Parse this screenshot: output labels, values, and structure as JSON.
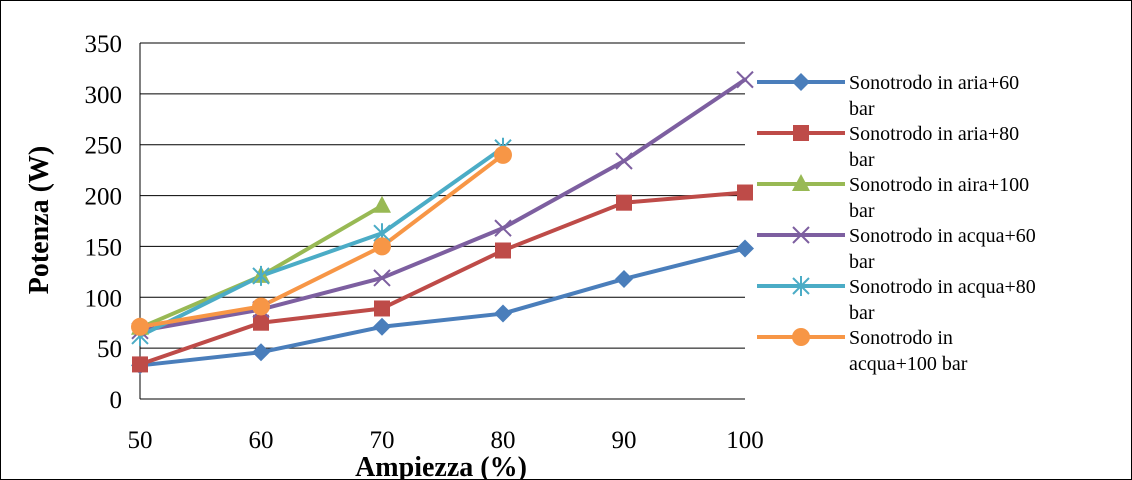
{
  "chart_data": {
    "type": "line",
    "xlabel": "Ampiezza (%)",
    "ylabel": "Potenza (W)",
    "x": [
      50,
      60,
      70,
      80,
      90,
      100
    ],
    "x_ticks": [
      "50",
      "60",
      "70",
      "80",
      "90",
      "100"
    ],
    "y_ticks": [
      "0",
      "50",
      "100",
      "150",
      "200",
      "250",
      "300",
      "350"
    ],
    "xlim": [
      50,
      100
    ],
    "ylim": [
      0,
      350
    ],
    "grid": "horizontal",
    "legend_position": "right",
    "series": [
      {
        "name_lines": [
          "Sonotrodo in aria+60",
          "bar"
        ],
        "color": "#4a7ebb",
        "marker": "diamond",
        "points": [
          [
            50,
            33
          ],
          [
            60,
            46
          ],
          [
            70,
            71
          ],
          [
            80,
            84
          ],
          [
            90,
            118
          ],
          [
            100,
            148
          ]
        ]
      },
      {
        "name_lines": [
          "Sonotrodo in aria+80",
          "bar"
        ],
        "color": "#be4b48",
        "marker": "square",
        "points": [
          [
            50,
            34
          ],
          [
            60,
            75
          ],
          [
            70,
            89
          ],
          [
            80,
            146
          ],
          [
            90,
            193
          ],
          [
            100,
            203
          ]
        ]
      },
      {
        "name_lines": [
          "Sonotrodo in aira+100",
          "bar"
        ],
        "color": "#98b954",
        "marker": "triangle",
        "points": [
          [
            50,
            70
          ],
          [
            60,
            121
          ],
          [
            70,
            190
          ]
        ]
      },
      {
        "name_lines": [
          "Sonotrodo in acqua+60",
          "bar"
        ],
        "color": "#7d5fa0",
        "marker": "x",
        "points": [
          [
            50,
            67
          ],
          [
            60,
            88
          ],
          [
            70,
            119
          ],
          [
            80,
            168
          ],
          [
            90,
            234
          ],
          [
            100,
            314
          ]
        ]
      },
      {
        "name_lines": [
          "Sonotrodo in acqua+80",
          "bar"
        ],
        "color": "#4bacc6",
        "marker": "star",
        "points": [
          [
            50,
            62
          ],
          [
            60,
            121
          ],
          [
            70,
            163
          ],
          [
            80,
            247
          ]
        ]
      },
      {
        "name_lines": [
          "Sonotrodo in",
          "acqua+100 bar"
        ],
        "color": "#f79646",
        "marker": "circle",
        "points": [
          [
            50,
            71
          ],
          [
            60,
            91
          ],
          [
            70,
            150
          ],
          [
            80,
            240
          ]
        ]
      }
    ]
  }
}
